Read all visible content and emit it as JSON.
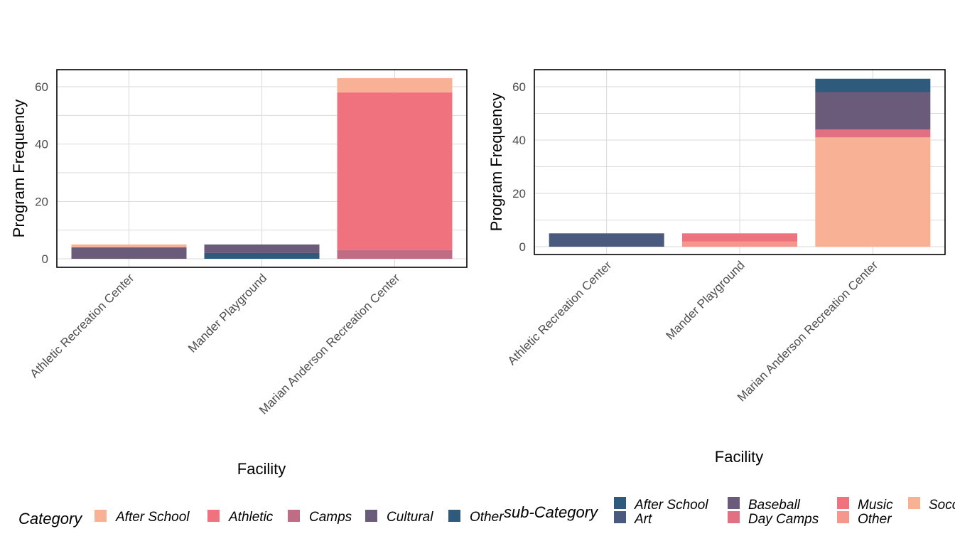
{
  "chart_data": [
    {
      "type": "bar",
      "stacked": true,
      "xlabel": "Facility",
      "ylabel": "Program Frequency",
      "ylim": [
        0,
        66
      ],
      "yticks": [
        0,
        20,
        40,
        60
      ],
      "grid": true,
      "categories": [
        "Athletic Recreation Center",
        "Mander Playground",
        "Marian Anderson Recreation Center"
      ],
      "series": [
        {
          "name": "Other",
          "color": "#2e5a7c",
          "values": [
            0,
            2,
            0
          ]
        },
        {
          "name": "Cultural",
          "color": "#6b5b7b",
          "values": [
            4,
            3,
            0
          ]
        },
        {
          "name": "Camps",
          "color": "#c06c84",
          "values": [
            0,
            0,
            3
          ]
        },
        {
          "name": "Athletic",
          "color": "#f0727f",
          "values": [
            0,
            0,
            55
          ]
        },
        {
          "name": "After School",
          "color": "#f8b195",
          "values": [
            1,
            0,
            5
          ]
        }
      ],
      "legend": {
        "title": "Category",
        "position": "bottom",
        "items": [
          {
            "label": "After School",
            "color": "#f8b195"
          },
          {
            "label": "Athletic",
            "color": "#f0727f"
          },
          {
            "label": "Camps",
            "color": "#c06c84"
          },
          {
            "label": "Cultural",
            "color": "#6b5b7b"
          },
          {
            "label": "Other",
            "color": "#2e5a7c"
          }
        ]
      }
    },
    {
      "type": "bar",
      "stacked": true,
      "xlabel": "Facility",
      "ylabel": "Program Frequency",
      "ylim": [
        0,
        66
      ],
      "yticks": [
        0,
        20,
        40,
        60
      ],
      "grid": true,
      "categories": [
        "Athletic Recreation Center",
        "Mander Playground",
        "Marian Anderson Recreation Center"
      ],
      "series": [
        {
          "name": "Art",
          "color": "#4a5a7e",
          "values": [
            5,
            0,
            0
          ]
        },
        {
          "name": "Other",
          "color": "#f7968a",
          "values": [
            0,
            2,
            0
          ]
        },
        {
          "name": "Music",
          "color": "#f0727f",
          "values": [
            0,
            3,
            0
          ]
        },
        {
          "name": "Soccer",
          "color": "#f8b195",
          "values": [
            0,
            0,
            41
          ]
        },
        {
          "name": "Day Camps",
          "color": "#e07082",
          "values": [
            0,
            0,
            3
          ]
        },
        {
          "name": "Baseball",
          "color": "#6b5b7b",
          "values": [
            0,
            0,
            14
          ]
        },
        {
          "name": "After School",
          "color": "#2e5a7c",
          "values": [
            0,
            0,
            5
          ]
        }
      ],
      "legend": {
        "title": "sub-Category",
        "position": "bottom",
        "columns": [
          [
            {
              "label": "After School",
              "color": "#2e5a7c"
            },
            {
              "label": "Art",
              "color": "#4a5a7e"
            }
          ],
          [
            {
              "label": "Baseball",
              "color": "#6b5b7b"
            },
            {
              "label": "Day Camps",
              "color": "#e07082"
            }
          ],
          [
            {
              "label": "Music",
              "color": "#f0727f"
            },
            {
              "label": "Other",
              "color": "#f7968a"
            }
          ],
          [
            {
              "label": "Soccer",
              "color": "#f8b195"
            }
          ]
        ]
      }
    }
  ]
}
